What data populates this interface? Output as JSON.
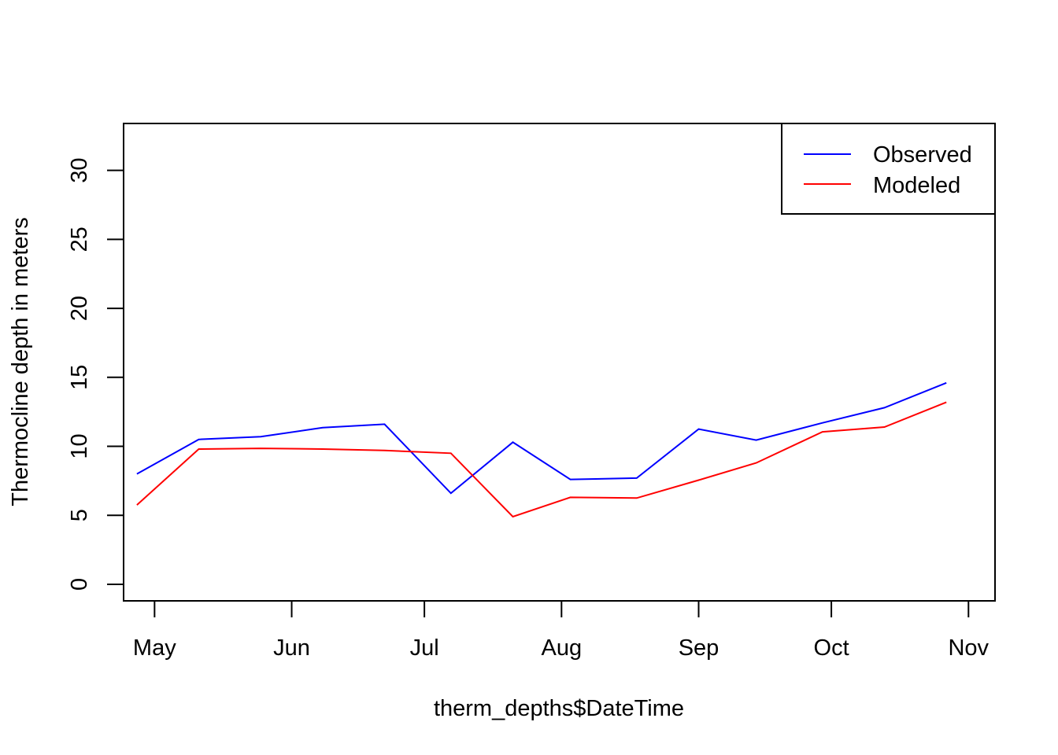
{
  "chart_data": {
    "type": "line",
    "title": "",
    "xlabel": "therm_depths$DateTime",
    "ylabel": "Thermocline depth in meters",
    "x": [
      "2019-04-27",
      "2019-05-11",
      "2019-05-25",
      "2019-06-08",
      "2019-06-22",
      "2019-07-07",
      "2019-07-21",
      "2019-08-03",
      "2019-08-18",
      "2019-09-01",
      "2019-09-14",
      "2019-09-29",
      "2019-10-13",
      "2019-10-27"
    ],
    "series": [
      {
        "name": "Observed",
        "color": "#0000ff",
        "values": [
          8.0,
          10.5,
          10.7,
          11.35,
          11.6,
          6.6,
          10.3,
          7.6,
          7.7,
          11.25,
          10.45,
          11.7,
          12.8,
          14.6
        ]
      },
      {
        "name": "Modeled",
        "color": "#ff0000",
        "values": [
          5.75,
          9.8,
          9.85,
          9.8,
          9.7,
          9.5,
          4.9,
          6.3,
          6.25,
          7.55,
          8.8,
          11.05,
          11.4,
          13.2
        ]
      }
    ],
    "xlim": [
      "2019-04-24",
      "2019-11-07"
    ],
    "ylim": [
      -1.2,
      33.4
    ],
    "x_ticks": [
      {
        "date": "2019-05-01",
        "label": "May"
      },
      {
        "date": "2019-06-01",
        "label": "Jun"
      },
      {
        "date": "2019-07-01",
        "label": "Jul"
      },
      {
        "date": "2019-08-01",
        "label": "Aug"
      },
      {
        "date": "2019-09-01",
        "label": "Sep"
      },
      {
        "date": "2019-10-01",
        "label": "Oct"
      },
      {
        "date": "2019-11-01",
        "label": "Nov"
      }
    ],
    "y_ticks": [
      0,
      5,
      10,
      15,
      20,
      25,
      30
    ],
    "grid": false,
    "legend": {
      "position": "top-right",
      "entries": [
        "Observed",
        "Modeled"
      ]
    }
  }
}
